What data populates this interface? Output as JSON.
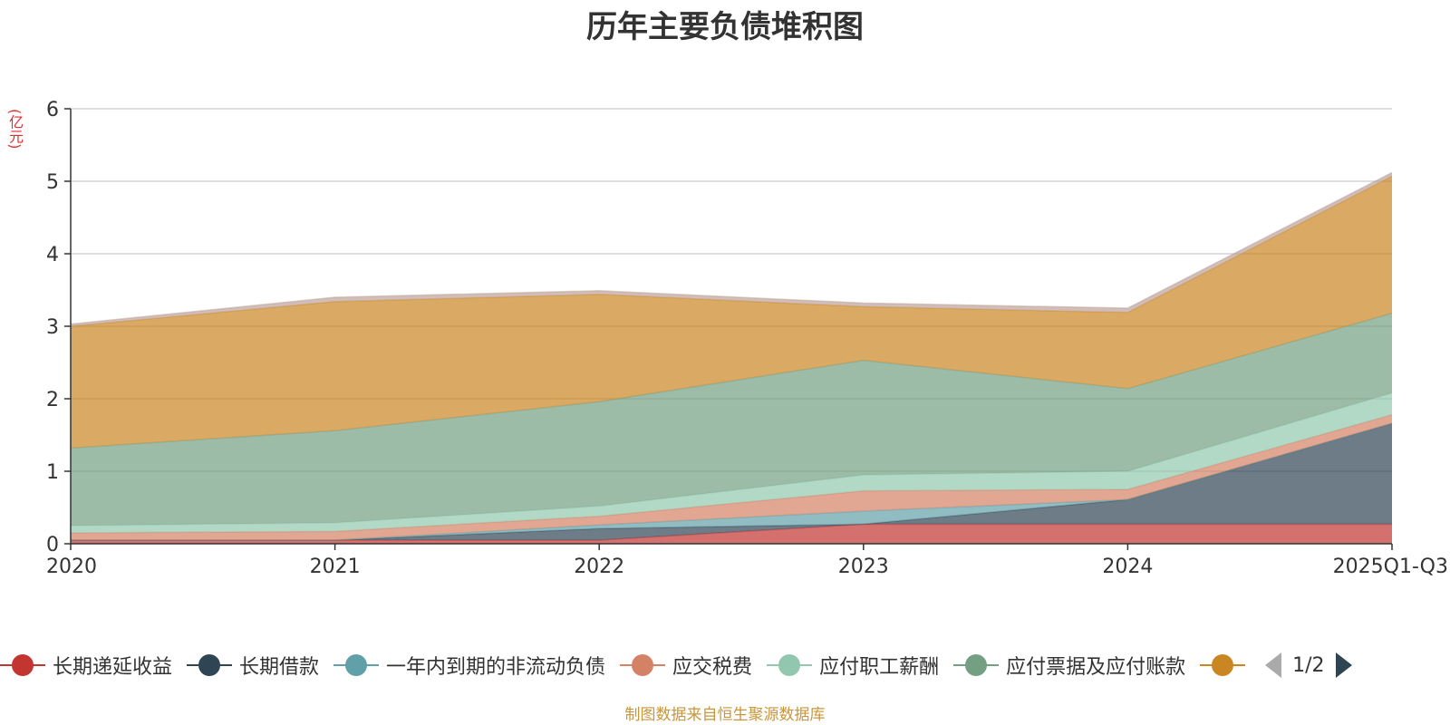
{
  "chart_data": {
    "type": "area",
    "stacked": true,
    "title": "历年主要负债堆积图",
    "unit_label": "(亿元)",
    "categories": [
      "2020",
      "2021",
      "2022",
      "2023",
      "2024",
      "2025Q1-Q3"
    ],
    "ylim": [
      0,
      6
    ],
    "yticks": [
      0,
      1,
      2,
      3,
      4,
      5,
      6
    ],
    "grid": true,
    "series": [
      {
        "name": "长期递延收益",
        "color": "#c23531",
        "values": [
          0.05,
          0.05,
          0.05,
          0.27,
          0.27,
          0.27
        ]
      },
      {
        "name": "长期借款",
        "color": "#2f4554",
        "values": [
          0.0,
          0.0,
          0.16,
          0.0,
          0.34,
          1.39
        ]
      },
      {
        "name": "一年内到期的非流动负债",
        "color": "#61a0a8",
        "values": [
          0.0,
          0.0,
          0.05,
          0.18,
          0.0,
          0.0
        ]
      },
      {
        "name": "应交税费",
        "color": "#d48265",
        "values": [
          0.1,
          0.12,
          0.12,
          0.28,
          0.14,
          0.12
        ]
      },
      {
        "name": "应付职工薪酬",
        "color": "#91c7ae",
        "values": [
          0.1,
          0.12,
          0.14,
          0.22,
          0.25,
          0.3
        ]
      },
      {
        "name": "应付票据及应付账款",
        "color": "#749f83",
        "values": [
          1.07,
          1.27,
          1.44,
          1.58,
          1.14,
          1.1
        ]
      },
      {
        "name": "",
        "color": "#ca8622",
        "values": [
          1.68,
          1.78,
          1.48,
          0.74,
          1.05,
          1.89
        ]
      },
      {
        "name": "",
        "color": "#bda29a",
        "values": [
          0.03,
          0.06,
          0.05,
          0.05,
          0.06,
          0.05
        ]
      }
    ],
    "legend": {
      "placement": "bottom",
      "page": "1/2"
    }
  },
  "source_note": "制图数据来自恒生聚源数据库"
}
